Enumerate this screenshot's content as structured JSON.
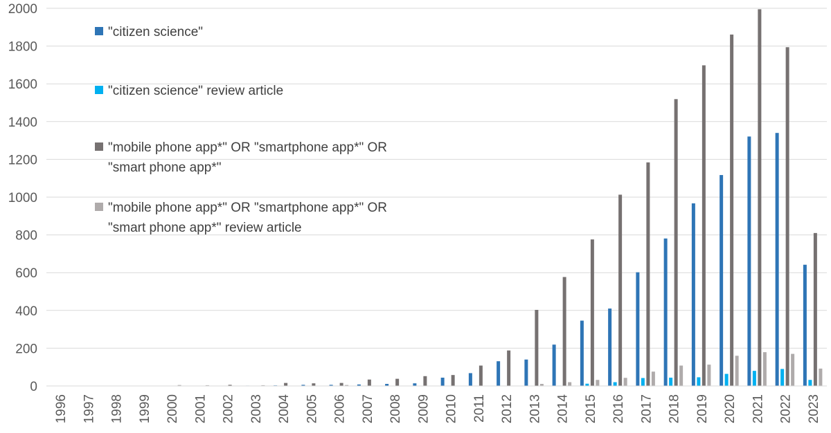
{
  "chart_data": {
    "type": "bar",
    "categories": [
      "1996",
      "1997",
      "1998",
      "1999",
      "2000",
      "2001",
      "2002",
      "2003",
      "2004",
      "2005",
      "2006",
      "2007",
      "2008",
      "2009",
      "2010",
      "2011",
      "2012",
      "2013",
      "2014",
      "2015",
      "2016",
      "2017",
      "2018",
      "2019",
      "2020",
      "2021",
      "2022",
      "2023"
    ],
    "series": [
      {
        "name": "\"citizen science\"",
        "color": "#2e75b6",
        "values": [
          0,
          0,
          0,
          0,
          1,
          0,
          0,
          2,
          3,
          6,
          6,
          8,
          11,
          14,
          44,
          68,
          131,
          140,
          219,
          346,
          410,
          602,
          781,
          967,
          1117,
          1321,
          1340,
          642
        ]
      },
      {
        "name": "\"citizen science\" review article",
        "color": "#00b0f0",
        "values": [
          0,
          0,
          0,
          0,
          0,
          0,
          0,
          0,
          0,
          0,
          0,
          0,
          0,
          0,
          0,
          0,
          1,
          1,
          2,
          12,
          20,
          42,
          44,
          46,
          64,
          80,
          90,
          32
        ]
      },
      {
        "name": "\"mobile phone app*\" OR \"smartphone app*\" OR \"smart phone app*\"",
        "color": "#767171",
        "values": [
          0,
          0,
          0,
          0,
          0,
          0,
          6,
          0,
          16,
          14,
          16,
          34,
          38,
          52,
          58,
          108,
          188,
          403,
          577,
          776,
          1013,
          1184,
          1519,
          1698,
          1861,
          1995,
          1794,
          810
        ]
      },
      {
        "name": "\"mobile phone app*\" OR \"smartphone app*\" OR \"smart phone app*\" review article",
        "color": "#afabab",
        "values": [
          0,
          0,
          0,
          0,
          5,
          4,
          0,
          4,
          0,
          0,
          5,
          0,
          0,
          0,
          0,
          0,
          0,
          11,
          20,
          32,
          43,
          76,
          108,
          113,
          160,
          179,
          170,
          92
        ]
      }
    ],
    "ylim": [
      0,
      2000
    ],
    "yticks": [
      "0",
      "200",
      "400",
      "600",
      "800",
      "1000",
      "1200",
      "1400",
      "1600",
      "1800",
      "2000"
    ],
    "grid": true,
    "legend": {
      "position": "top-left",
      "entries": [
        {
          "lines": [
            "\"citizen science\""
          ]
        },
        {
          "lines": [
            "\"citizen science\" review article"
          ]
        },
        {
          "lines": [
            " \"mobile phone app*\" OR \"smartphone app*\" OR",
            "\"smart phone app*\""
          ]
        },
        {
          "lines": [
            " \"mobile phone app*\" OR \"smartphone app*\" OR",
            "\"smart phone app*\" review article"
          ]
        }
      ]
    }
  }
}
